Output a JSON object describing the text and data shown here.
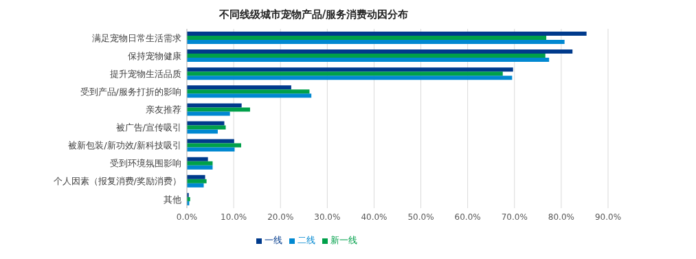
{
  "chart_data": {
    "type": "bar",
    "orientation": "horizontal",
    "title": "不同线级城市宠物产品/服务消费动因分布",
    "categories": [
      "满足宠物日常生活需求",
      "保持宠物健康",
      "提升宠物生活品质",
      "受到产品/服务打折的影响",
      "亲友推荐",
      "被广告/宣传吸引",
      "被新包装/新功效/新科技吸引",
      "受到环境氛围影响",
      "个人因素（报复消费/奖励消费）",
      "其他"
    ],
    "series": [
      {
        "name": "一线",
        "color": "#003a8c",
        "values": [
          85.4,
          82.4,
          69.7,
          22.3,
          11.7,
          8.0,
          10.1,
          4.5,
          3.9,
          0.4
        ]
      },
      {
        "name": "新一线",
        "color": "#00a04a",
        "values": [
          76.8,
          76.6,
          67.5,
          26.2,
          13.5,
          8.3,
          11.6,
          5.5,
          4.2,
          0.7
        ]
      },
      {
        "name": "二线",
        "color": "#0088d1",
        "values": [
          80.7,
          77.4,
          69.5,
          26.6,
          9.2,
          6.6,
          10.2,
          5.5,
          3.6,
          0.5
        ]
      }
    ],
    "xlim": [
      0,
      90
    ],
    "xticks": [
      {
        "value": 0,
        "label": "0.0%"
      },
      {
        "value": 10,
        "label": "10.0%"
      },
      {
        "value": 20,
        "label": "20.0%"
      },
      {
        "value": 30,
        "label": "30.0%"
      },
      {
        "value": 40,
        "label": "40.0%"
      },
      {
        "value": 50,
        "label": "50.0%"
      },
      {
        "value": 60,
        "label": "60.0%"
      },
      {
        "value": 70,
        "label": "70.0%"
      },
      {
        "value": 80,
        "label": "80.0%"
      },
      {
        "value": 90,
        "label": "90.0%"
      }
    ],
    "grid": "x",
    "legend": "bottom"
  }
}
